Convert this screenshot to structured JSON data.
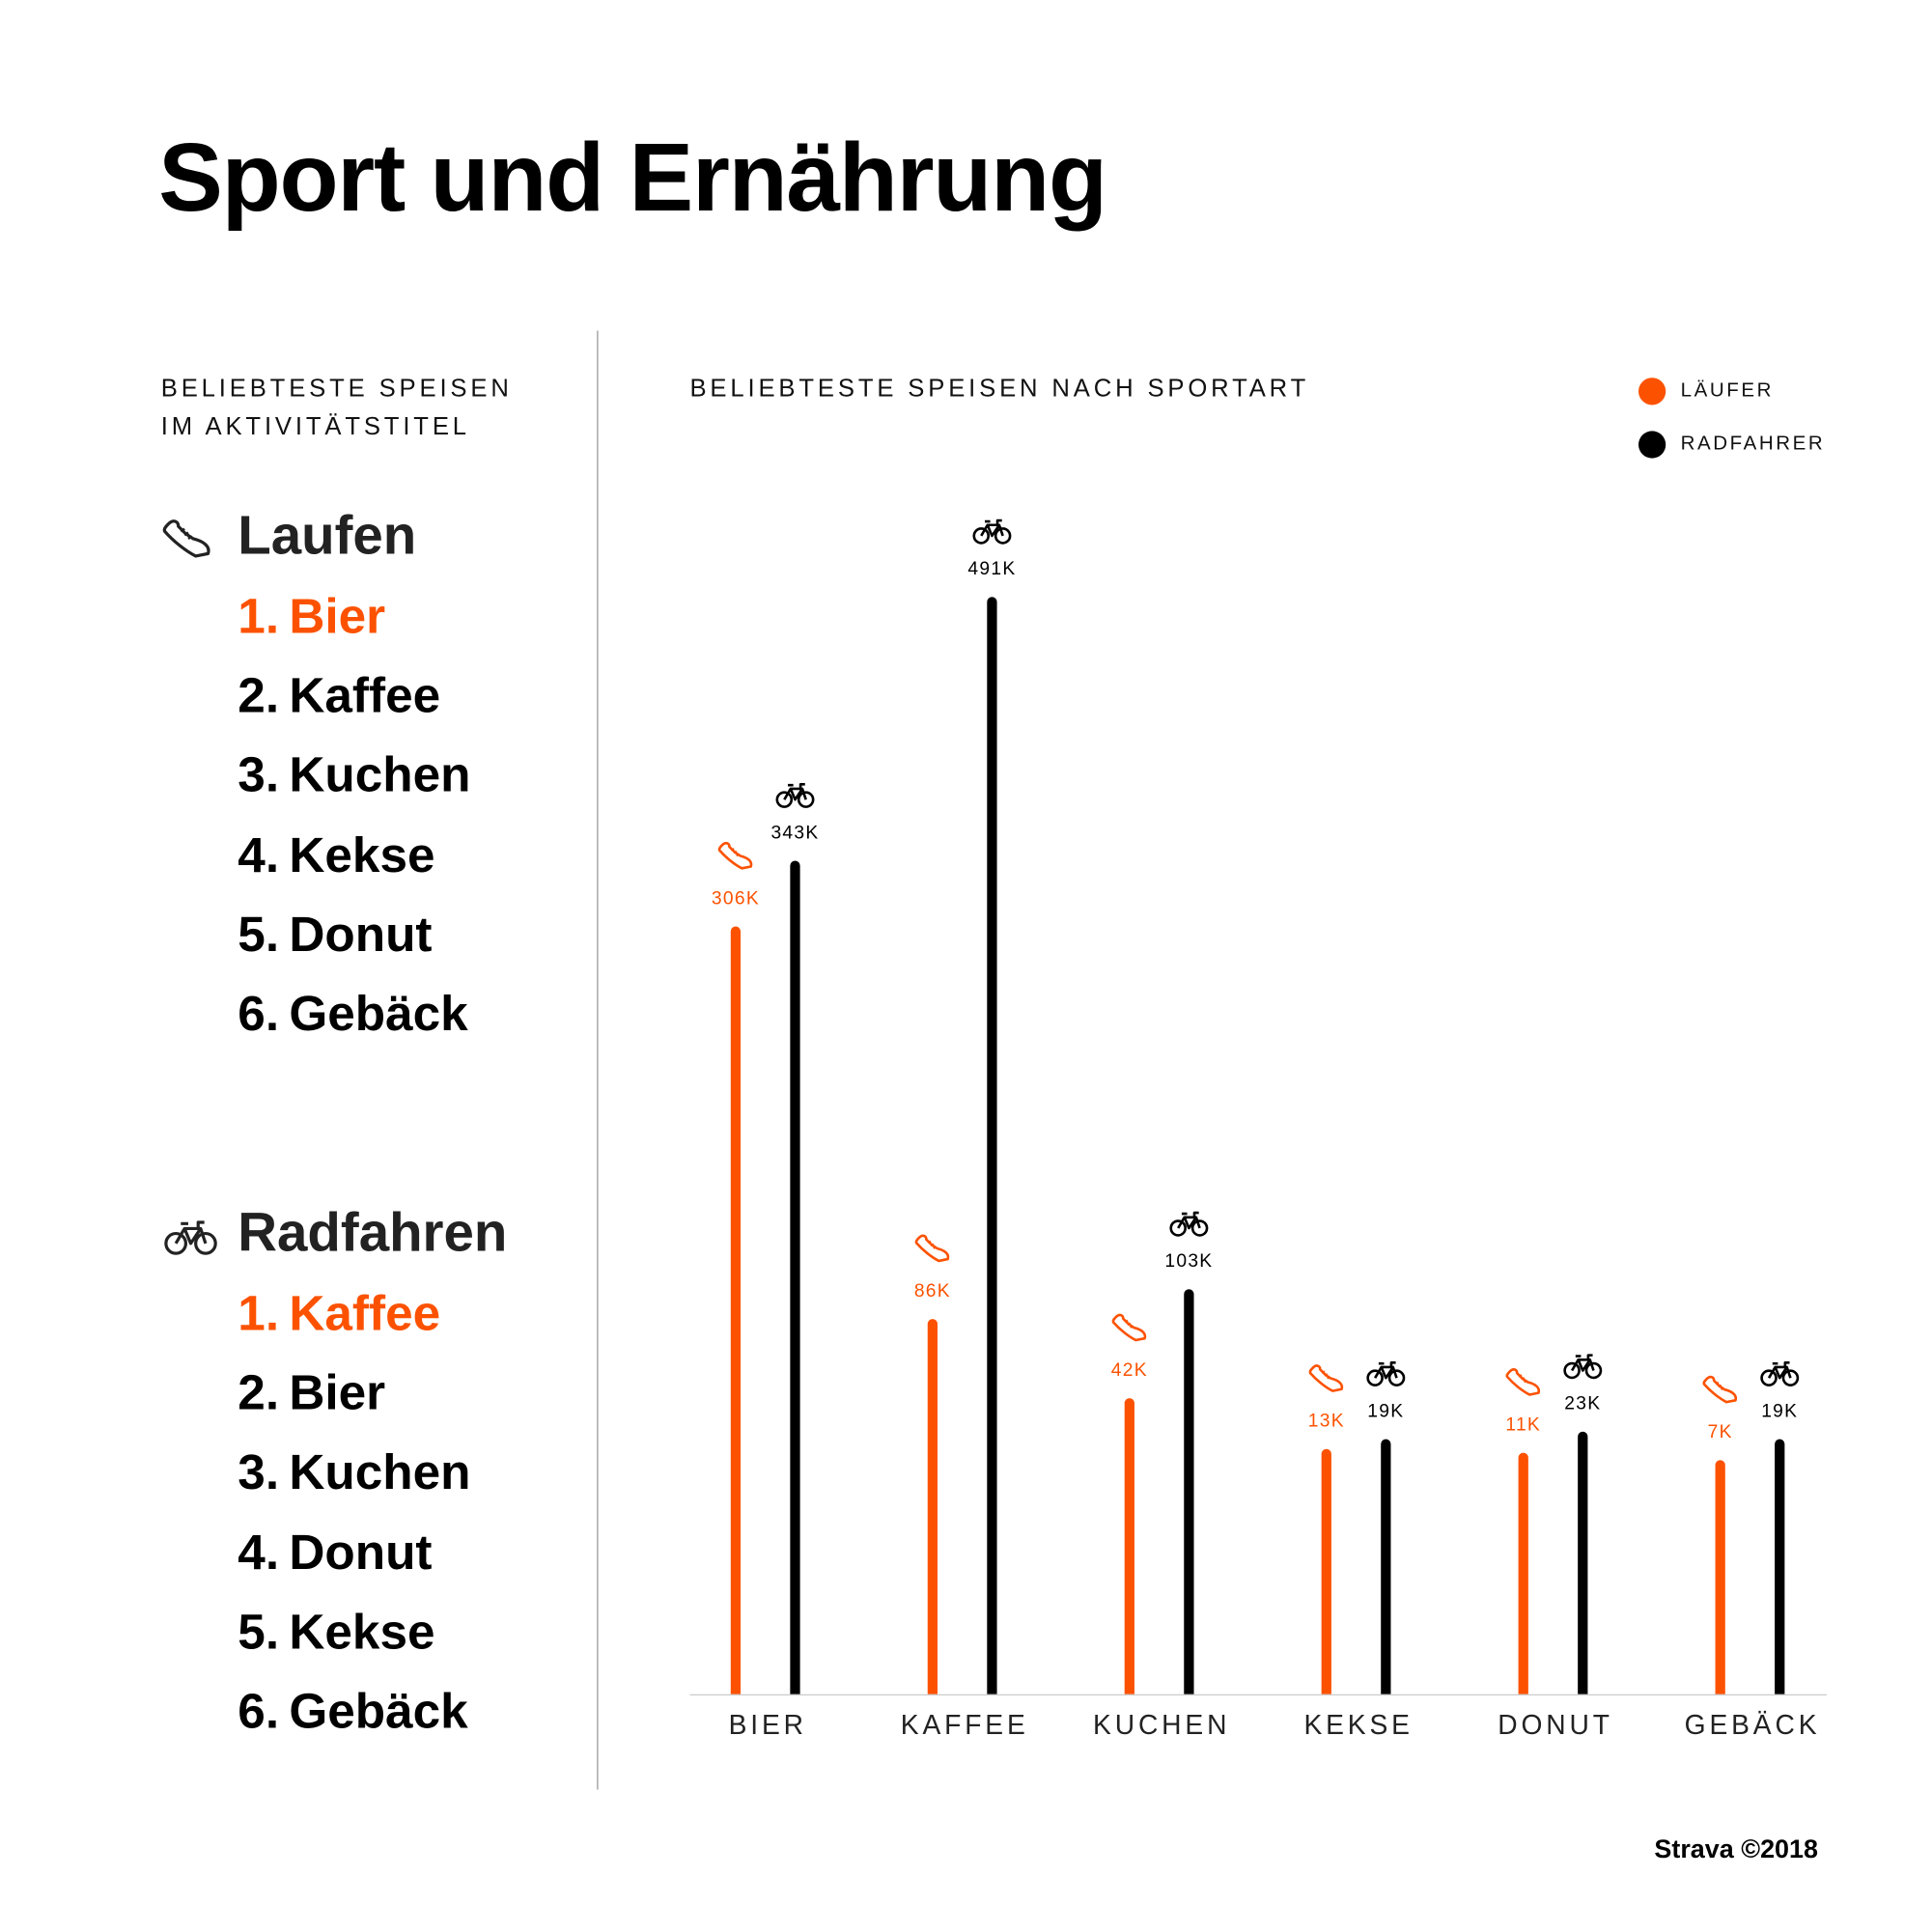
{
  "title": "Sport und Ernährung",
  "left_panel": {
    "caption_line1": "BELIEBTESTE SPEISEN",
    "caption_line2": "IM AKTIVITÄTSTITEL",
    "running": {
      "heading": "Laufen",
      "icon": "running-shoe-icon",
      "items": [
        {
          "num": "1.",
          "label": "Bier"
        },
        {
          "num": "2.",
          "label": "Kaffee"
        },
        {
          "num": "3.",
          "label": "Kuchen"
        },
        {
          "num": "4.",
          "label": "Kekse"
        },
        {
          "num": "5.",
          "label": "Donut"
        },
        {
          "num": "6.",
          "label": "Gebäck"
        }
      ]
    },
    "cycling": {
      "heading": "Radfahren",
      "icon": "bicycle-icon",
      "items": [
        {
          "num": "1.",
          "label": "Kaffee"
        },
        {
          "num": "2.",
          "label": "Bier"
        },
        {
          "num": "3.",
          "label": "Kuchen"
        },
        {
          "num": "4.",
          "label": "Donut"
        },
        {
          "num": "5.",
          "label": "Kekse"
        },
        {
          "num": "6.",
          "label": "Gebäck"
        }
      ]
    }
  },
  "colors": {
    "runner": "#fc5200",
    "cyclist": "#000000"
  },
  "chart_data": {
    "type": "bar",
    "title": "BELIEBTESTE SPEISEN NACH SPORTART",
    "categories": [
      "BIER",
      "KAFFEE",
      "KUCHEN",
      "KEKSE",
      "DONUT",
      "GEBÄCK"
    ],
    "series": [
      {
        "name": "LÄUFER",
        "values": [
          306,
          86,
          42,
          13,
          11,
          7
        ],
        "labels": [
          "306K",
          "86K",
          "42K",
          "13K",
          "11K",
          "7K"
        ],
        "color": "#fc5200",
        "icon": "running-shoe-icon"
      },
      {
        "name": "RADFAHRER",
        "values": [
          343,
          491,
          103,
          19,
          23,
          19
        ],
        "labels": [
          "343K",
          "491K",
          "103K",
          "19K",
          "23K",
          "19K"
        ],
        "color": "#000000",
        "icon": "bicycle-icon"
      }
    ],
    "unit": "K",
    "legend": "top-right",
    "grid": false
  },
  "credit": "Strava ©2018"
}
